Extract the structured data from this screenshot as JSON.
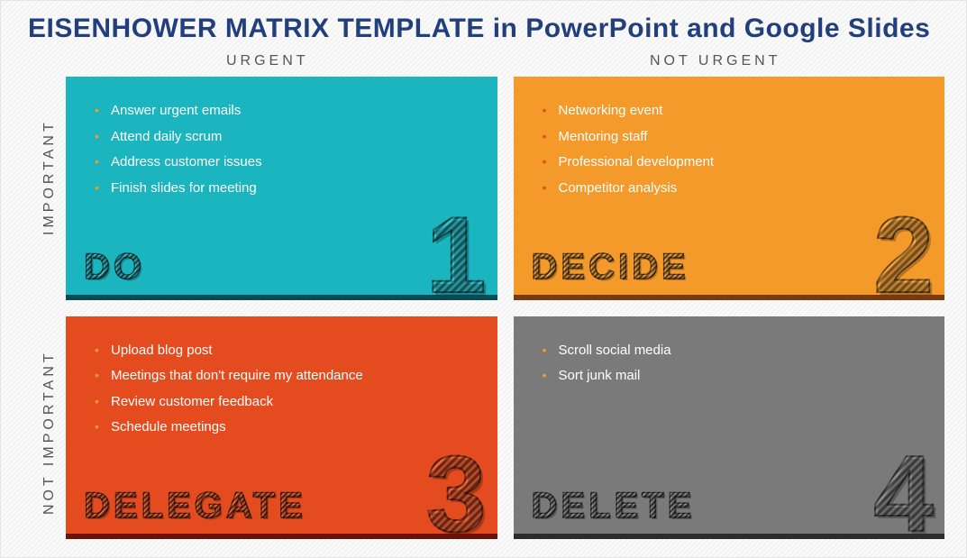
{
  "title": "EISENHOWER MATRIX TEMPLATE in PowerPoint and Google Slides",
  "axes": {
    "colLeft": "URGENT",
    "colRight": "NOT URGENT",
    "rowTop": "IMPORTANT",
    "rowBottom": "NOT IMPORTANT"
  },
  "quadrants": [
    {
      "key": "do",
      "label": "DO",
      "number": "1",
      "bg": "#1ab5bf",
      "underline": "#0b4a55",
      "bullet": "#f39a2b",
      "items": [
        "Answer urgent emails",
        "Attend daily scrum",
        "Address customer issues",
        "Finish slides for meeting"
      ]
    },
    {
      "key": "decide",
      "label": "DECIDE",
      "number": "2",
      "bg": "#f39a2b",
      "underline": "#7a3a0f",
      "bullet": "#e44c1f",
      "items": [
        "Networking event",
        "Mentoring staff",
        "Professional development",
        "Competitor analysis"
      ]
    },
    {
      "key": "delegate",
      "label": "DELEGATE",
      "number": "3",
      "bg": "#e44c1f",
      "underline": "#6d1208",
      "bullet": "#f39a2b",
      "items": [
        "Upload blog post",
        "Meetings that don't require my attendance",
        "Review customer feedback",
        "Schedule meetings"
      ]
    },
    {
      "key": "delete",
      "label": "DELETE",
      "number": "4",
      "bg": "#7a7a7a",
      "underline": "#2c2c2c",
      "bullet": "#f39a2b",
      "items": [
        "Scroll social media",
        "Sort junk mail"
      ]
    }
  ]
}
